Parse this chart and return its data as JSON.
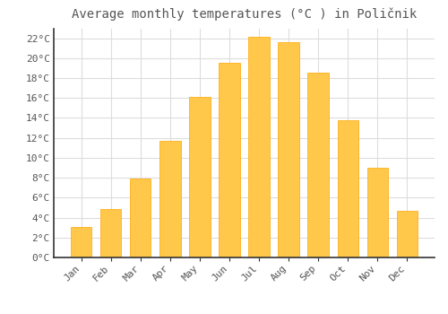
{
  "title": "Average monthly temperatures (°C ) in Poličnik",
  "months": [
    "Jan",
    "Feb",
    "Mar",
    "Apr",
    "May",
    "Jun",
    "Jul",
    "Aug",
    "Sep",
    "Oct",
    "Nov",
    "Dec"
  ],
  "values": [
    3.1,
    4.9,
    7.9,
    11.7,
    16.1,
    19.5,
    22.1,
    21.6,
    18.5,
    13.8,
    9.0,
    4.7
  ],
  "bar_color_light": "#FFC84A",
  "bar_color_dark": "#FFA500",
  "background_color": "#FFFFFF",
  "grid_color": "#DDDDDD",
  "text_color": "#555555",
  "spine_color": "#333333",
  "ylim": [
    0,
    23.0
  ],
  "ytick_max": 22,
  "ytick_step": 2,
  "title_fontsize": 10,
  "tick_fontsize": 8,
  "font_family": "monospace"
}
